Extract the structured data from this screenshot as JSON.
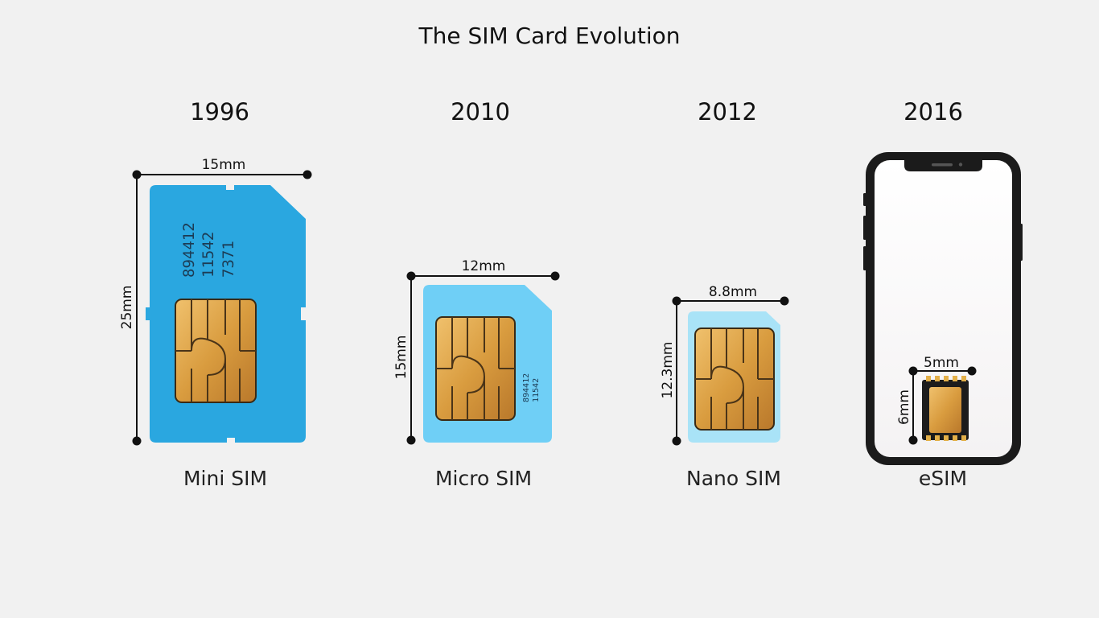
{
  "title": "The SIM Card Evolution",
  "colors": {
    "background": "#f1f1f1",
    "mini_sim": "#2aa7e0",
    "micro_sim": "#6fcff6",
    "nano_sim": "#a9e3f7",
    "chip_gold": "#e1a94c",
    "phone_frame": "#1b1b1b"
  },
  "cards": [
    {
      "year": "1996",
      "name": "Mini SIM",
      "width_label": "15mm",
      "height_label": "25mm",
      "serial_lines": [
        "894412",
        "11542",
        "7371"
      ]
    },
    {
      "year": "2010",
      "name": "Micro SIM",
      "width_label": "12mm",
      "height_label": "15mm",
      "serial_lines": [
        "894412",
        "11542"
      ]
    },
    {
      "year": "2012",
      "name": "Nano SIM",
      "width_label": "8.8mm",
      "height_label": "12.3mm"
    },
    {
      "year": "2016",
      "name": "eSIM",
      "width_label": "5mm",
      "height_label": "6mm"
    }
  ]
}
